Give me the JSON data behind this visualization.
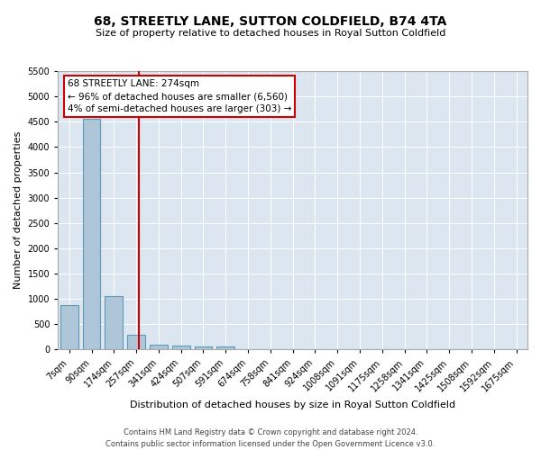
{
  "title": "68, STREETLY LANE, SUTTON COLDFIELD, B74 4TA",
  "subtitle": "Size of property relative to detached houses in Royal Sutton Coldfield",
  "xlabel": "Distribution of detached houses by size in Royal Sutton Coldfield",
  "ylabel": "Number of detached properties",
  "footer_line1": "Contains HM Land Registry data © Crown copyright and database right 2024.",
  "footer_line2": "Contains public sector information licensed under the Open Government Licence v3.0.",
  "categories": [
    "7sqm",
    "90sqm",
    "174sqm",
    "257sqm",
    "341sqm",
    "424sqm",
    "507sqm",
    "591sqm",
    "674sqm",
    "758sqm",
    "841sqm",
    "924sqm",
    "1008sqm",
    "1091sqm",
    "1175sqm",
    "1258sqm",
    "1341sqm",
    "1425sqm",
    "1508sqm",
    "1592sqm",
    "1675sqm"
  ],
  "values": [
    880,
    4550,
    1060,
    290,
    90,
    70,
    60,
    60,
    0,
    0,
    0,
    0,
    0,
    0,
    0,
    0,
    0,
    0,
    0,
    0,
    0
  ],
  "bar_color": "#aec6d8",
  "bar_edge_color": "#5b9bb5",
  "ylim": [
    0,
    5500
  ],
  "yticks": [
    0,
    500,
    1000,
    1500,
    2000,
    2500,
    3000,
    3500,
    4000,
    4500,
    5000,
    5500
  ],
  "annotation_title": "68 STREETLY LANE: 274sqm",
  "annotation_line1": "← 96% of detached houses are smaller (6,560)",
  "annotation_line2": "4% of semi-detached houses are larger (303) →",
  "annotation_box_color": "#ffffff",
  "annotation_box_edge_color": "#cc0000",
  "property_line_color": "#cc0000",
  "plot_background_color": "#dce6f0",
  "grid_color": "#ffffff",
  "title_fontsize": 10,
  "subtitle_fontsize": 8,
  "ylabel_fontsize": 8,
  "xlabel_fontsize": 8,
  "tick_fontsize": 7,
  "footer_fontsize": 6,
  "property_line_x": 3.1
}
